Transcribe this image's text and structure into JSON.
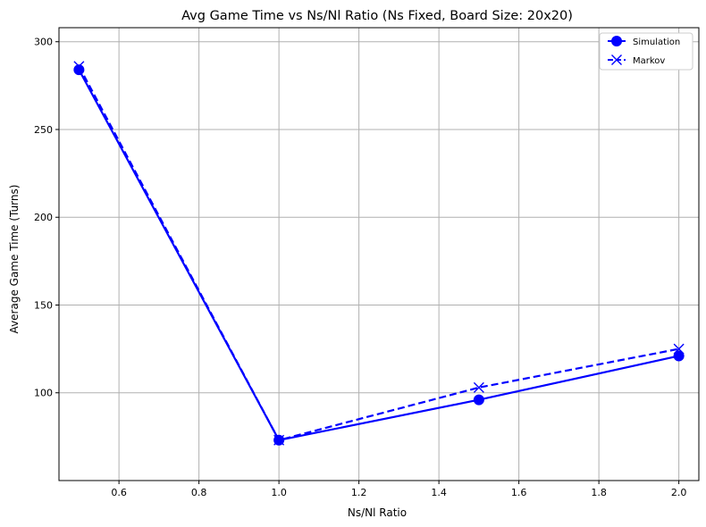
{
  "chart_data": {
    "type": "line",
    "title": "Avg Game Time vs Ns/Nl Ratio (Ns Fixed, Board Size: 20x20)",
    "xlabel": "Ns/Nl Ratio",
    "ylabel": "Average Game Time (Turns)",
    "xlim": [
      0.45,
      2.05
    ],
    "ylim": [
      50,
      308
    ],
    "xticks": [
      0.6,
      0.8,
      1.0,
      1.2,
      1.4,
      1.6,
      1.8,
      2.0
    ],
    "xtick_labels": [
      "0.6",
      "0.8",
      "1.0",
      "1.2",
      "1.4",
      "1.6",
      "1.8",
      "2.0"
    ],
    "yticks": [
      100,
      150,
      200,
      250,
      300
    ],
    "ytick_labels": [
      "100",
      "150",
      "200",
      "250",
      "300"
    ],
    "grid": true,
    "legend_position": "top-right",
    "series": [
      {
        "name": "Simulation",
        "color": "#0000ff",
        "line_style": "solid",
        "marker": "circle",
        "x": [
          0.5,
          1.0,
          1.5,
          2.0
        ],
        "y": [
          284,
          73,
          96,
          121
        ]
      },
      {
        "name": "Markov",
        "color": "#0000ff",
        "line_style": "dashed",
        "marker": "x",
        "x": [
          0.5,
          1.0,
          1.5,
          2.0
        ],
        "y": [
          286,
          73,
          103,
          125
        ]
      }
    ]
  }
}
